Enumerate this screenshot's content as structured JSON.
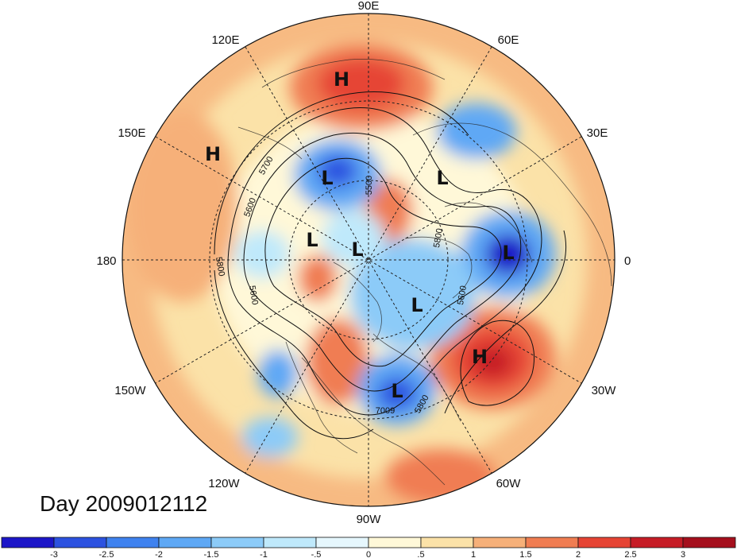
{
  "date_label": "Day 2009012112",
  "longitude_labels": [
    "90E",
    "60E",
    "30E",
    "0",
    "30W",
    "60W",
    "90W",
    "120W",
    "150W",
    "180",
    "150E",
    "120E"
  ],
  "pressure_systems": [
    {
      "type": "H",
      "label": "H"
    },
    {
      "type": "H",
      "label": "H"
    },
    {
      "type": "H",
      "label": "H"
    },
    {
      "type": "L",
      "label": "L"
    },
    {
      "type": "L",
      "label": "L"
    },
    {
      "type": "L",
      "label": "L"
    },
    {
      "type": "L",
      "label": "L"
    },
    {
      "type": "L",
      "label": "L"
    },
    {
      "type": "L",
      "label": "L"
    },
    {
      "type": "L",
      "label": "L"
    }
  ],
  "contour_labels": [
    "5700",
    "5600",
    "5800",
    "5600",
    "5500",
    "5600",
    "5800",
    "7009",
    "5800"
  ],
  "colorbar": {
    "ticks": [
      "-3",
      "-2.5",
      "-2",
      "-1.5",
      "-1",
      "-.5",
      "0",
      ".5",
      "1",
      "1.5",
      "2",
      "2.5",
      "3"
    ],
    "colors": [
      "#1c16c8",
      "#2c52e0",
      "#3f82ef",
      "#5ea8f5",
      "#8ccbf8",
      "#bfe9fb",
      "#e6f7fd",
      "#fff8d8",
      "#fbe2a8",
      "#f6b079",
      "#f07d52",
      "#e64434",
      "#c61c26",
      "#a50f1d"
    ]
  },
  "anomaly_scale": {
    "min": -3,
    "max": 3
  }
}
